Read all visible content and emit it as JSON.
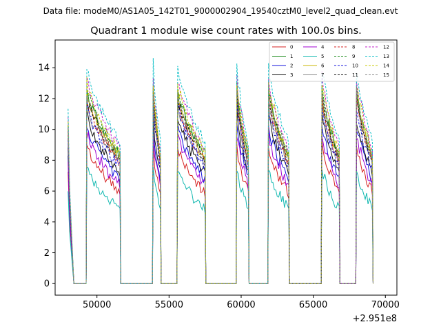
{
  "suptitle": "Data file: modeM0/AS1A05_142T01_9000002904_19540cztM0_level2_quad_clean.evt",
  "chart_data": {
    "type": "line",
    "title": "Quadrant 1 module wise count rates with 100.0s bins.",
    "xlabel": "",
    "ylabel": "",
    "x_offset_label": "+2.951e8",
    "xlim": [
      47100,
      70800
    ],
    "ylim": [
      -0.75,
      15.8
    ],
    "x_ticks": [
      50000,
      55000,
      60000,
      65000,
      70000
    ],
    "x_tick_labels": [
      "50000",
      "55000",
      "60000",
      "65000",
      "70000"
    ],
    "y_ticks": [
      0,
      2,
      4,
      6,
      8,
      10,
      12,
      14
    ],
    "y_tick_labels": [
      "0",
      "2",
      "4",
      "6",
      "8",
      "10",
      "12",
      "14"
    ],
    "legend_position": "upper right",
    "segments": [
      {
        "start": 48000,
        "end": 48400,
        "spike": true
      },
      {
        "start": 49300,
        "end": 51600
      },
      {
        "start": 53900,
        "end": 54400
      },
      {
        "start": 55600,
        "end": 57500
      },
      {
        "start": 59700,
        "end": 60500
      },
      {
        "start": 61900,
        "end": 63300
      },
      {
        "start": 65600,
        "end": 66800
      },
      {
        "start": 68000,
        "end": 69100
      }
    ],
    "series": [
      {
        "name": "0",
        "color": "#d62020",
        "dashed": false,
        "level": 6.9
      },
      {
        "name": "1",
        "color": "#1a8a1a",
        "dashed": false,
        "level": 9.7
      },
      {
        "name": "2",
        "color": "#1010dd",
        "dashed": false,
        "level": 7.9
      },
      {
        "name": "3",
        "color": "#111111",
        "dashed": false,
        "level": 8.4
      },
      {
        "name": "4",
        "color": "#a000d0",
        "dashed": false,
        "level": 7.5
      },
      {
        "name": "5",
        "color": "#10b8b0",
        "dashed": false,
        "level": 5.7
      },
      {
        "name": "6",
        "color": "#c8b400",
        "dashed": false,
        "level": 9.5
      },
      {
        "name": "7",
        "color": "#888888",
        "dashed": false,
        "level": 9.1
      },
      {
        "name": "8",
        "color": "#d62020",
        "dashed": true,
        "level": 9.2
      },
      {
        "name": "9",
        "color": "#1a8a1a",
        "dashed": true,
        "level": 9.8
      },
      {
        "name": "10",
        "color": "#1010dd",
        "dashed": true,
        "level": 8.9
      },
      {
        "name": "11",
        "color": "#111111",
        "dashed": true,
        "level": 9.4
      },
      {
        "name": "12",
        "color": "#c020c8",
        "dashed": true,
        "level": 10.3
      },
      {
        "name": "13",
        "color": "#10c0c8",
        "dashed": true,
        "level": 10.8
      },
      {
        "name": "14",
        "color": "#c8c800",
        "dashed": true,
        "level": 10.0
      },
      {
        "name": "15",
        "color": "#888888",
        "dashed": true,
        "level": 9.6
      }
    ]
  }
}
